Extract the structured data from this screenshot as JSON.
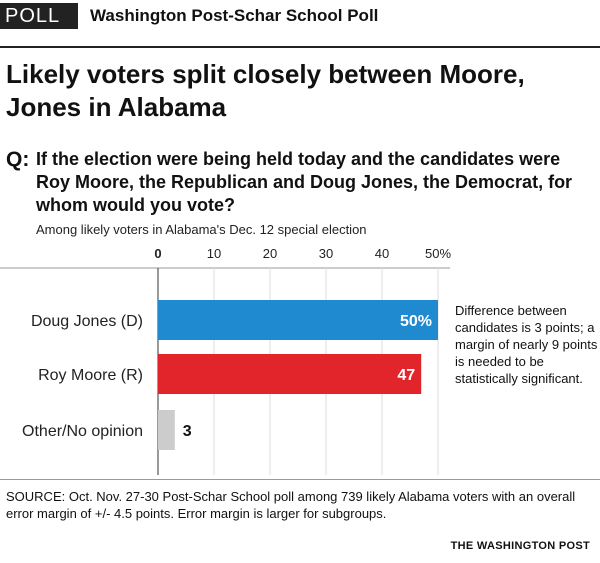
{
  "header": {
    "badge": "POLL",
    "poll_name": "Washington Post-Schar School Poll"
  },
  "headline": "Likely voters split closely between Moore, Jones in Alabama",
  "question": {
    "label": "Q:",
    "text": "If the election were being held today and the candidates were Roy Moore, the Republican and Doug Jones, the Democrat, for whom would you vote?"
  },
  "subtitle": "Among likely voters in Alabama's Dec. 12 special election",
  "note": "Difference between candidates is 3 points; a margin of nearly 9 points is needed to be statistically significant.",
  "source": "SOURCE:  Oct. Nov. 27-30 Post-Schar School poll among 739 likely Alabama voters with an overall error margin of +/- 4.5 points. Error margin is larger for subgroups.",
  "credit": "THE WASHINGTON POST",
  "colors": {
    "jones": "#1f8ad0",
    "moore": "#e2242b",
    "other": "#cccccc"
  },
  "chart_data": {
    "type": "bar",
    "orientation": "horizontal",
    "categories": [
      "Doug Jones (D)",
      "Roy Moore (R)",
      "Other/No opinion"
    ],
    "values": [
      50,
      47,
      3
    ],
    "value_labels": [
      "50%",
      "47",
      "3"
    ],
    "xlim": [
      0,
      50
    ],
    "x_ticks": [
      0,
      10,
      20,
      30,
      40,
      50
    ],
    "x_tick_labels": [
      "0",
      "10",
      "20",
      "30",
      "40",
      "50%"
    ],
    "grid": true
  }
}
